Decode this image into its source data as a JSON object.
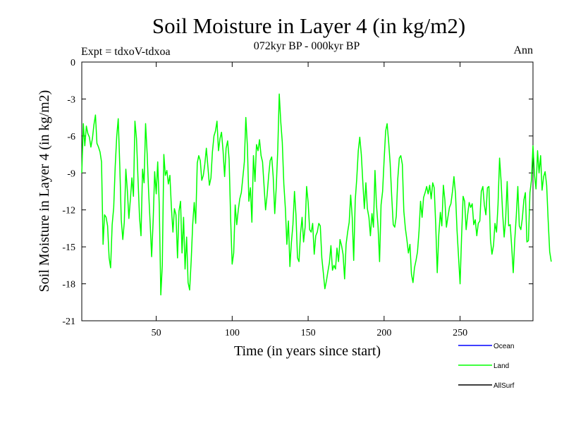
{
  "chart_data": {
    "type": "line",
    "title": "Soil Moisture in Layer 4 (in kg/m2)",
    "subtitle": "072kyr BP - 000kyr BP",
    "top_left_label": "Expt = tdxoV-tdxoa",
    "top_right_label": "Ann",
    "xlabel": "Time (in years since start)",
    "ylabel": "Soil Moisture in Layer 4 (in kg/m2)",
    "xlim": [
      1,
      298
    ],
    "ylim": [
      -21,
      0
    ],
    "x_ticks": [
      50,
      100,
      150,
      200,
      250
    ],
    "y_ticks": [
      0,
      -3,
      -6,
      -9,
      -12,
      -15,
      -18,
      -21
    ],
    "grid": false,
    "legend": {
      "placement": "bottom-right",
      "entries": [
        {
          "label": "Ocean",
          "color": "#0000ff"
        },
        {
          "label": "Land",
          "color": "#00ff00"
        },
        {
          "label": "AllSurf",
          "color": "#000000"
        }
      ]
    },
    "series": [
      {
        "name": "Land",
        "color": "#00ff00",
        "x_start": 1,
        "x_step": 1,
        "values": [
          -9.0,
          -5.0,
          -6.8,
          -5.2,
          -5.8,
          -6.1,
          -6.9,
          -6.2,
          -5.1,
          -4.3,
          -6.6,
          -6.9,
          -7.3,
          -8.1,
          -14.8,
          -12.4,
          -12.6,
          -13.3,
          -15.9,
          -16.7,
          -13.2,
          -11.8,
          -8.5,
          -6.0,
          -4.6,
          -8.4,
          -12.8,
          -14.4,
          -13.0,
          -8.7,
          -10.4,
          -12.7,
          -11.1,
          -9.4,
          -10.9,
          -4.8,
          -6.2,
          -9.4,
          -12.6,
          -14.1,
          -8.7,
          -9.8,
          -5.0,
          -7.4,
          -10.5,
          -13.1,
          -15.8,
          -12.8,
          -8.9,
          -10.7,
          -8.1,
          -11.6,
          -18.9,
          -16.5,
          -7.5,
          -9.2,
          -8.8,
          -9.9,
          -9.2,
          -11.8,
          -13.8,
          -11.9,
          -12.4,
          -15.9,
          -12.1,
          -11.3,
          -15.5,
          -12.6,
          -16.8,
          -14.2,
          -17.9,
          -18.5,
          -16.1,
          -13.2,
          -11.4,
          -13.1,
          -8.2,
          -7.6,
          -8.0,
          -9.6,
          -9.2,
          -8.3,
          -7.0,
          -8.5,
          -10.0,
          -9.4,
          -7.3,
          -6.0,
          -5.6,
          -4.8,
          -7.2,
          -6.2,
          -5.7,
          -7.2,
          -9.3,
          -7.0,
          -6.4,
          -7.9,
          -12.8,
          -16.4,
          -15.5,
          -11.6,
          -13.2,
          -12.0,
          -11.1,
          -10.6,
          -9.4,
          -8.1,
          -4.5,
          -6.8,
          -11.3,
          -10.2,
          -13.0,
          -7.6,
          -9.7,
          -6.7,
          -7.2,
          -6.3,
          -7.6,
          -8.1,
          -10.1,
          -12.0,
          -10.8,
          -9.2,
          -8.0,
          -7.7,
          -9.3,
          -12.3,
          -10.2,
          -7.1,
          -2.6,
          -4.9,
          -6.5,
          -9.9,
          -11.9,
          -14.8,
          -12.9,
          -16.6,
          -14.6,
          -13.2,
          -10.5,
          -12.4,
          -15.9,
          -16.2,
          -13.9,
          -12.6,
          -14.6,
          -13.4,
          -10.1,
          -11.4,
          -13.6,
          -13.8,
          -13.1,
          -15.6,
          -14.1,
          -13.8,
          -13.1,
          -13.3,
          -15.9,
          -17.1,
          -18.4,
          -17.8,
          -17.0,
          -16.3,
          -14.9,
          -16.9,
          -16.5,
          -16.8,
          -15.1,
          -16.2,
          -14.4,
          -14.9,
          -15.6,
          -17.6,
          -14.8,
          -13.8,
          -13.0,
          -10.8,
          -12.6,
          -16.1,
          -11.2,
          -9.5,
          -7.2,
          -6.1,
          -7.5,
          -9.8,
          -11.9,
          -9.8,
          -11.9,
          -12.6,
          -14.1,
          -12.3,
          -13.4,
          -8.8,
          -11.6,
          -13.3,
          -16.2,
          -11.6,
          -10.5,
          -8.0,
          -5.6,
          -5.0,
          -6.5,
          -8.2,
          -10.9,
          -13.2,
          -13.4,
          -12.5,
          -9.5,
          -7.8,
          -7.6,
          -8.3,
          -12.1,
          -13.5,
          -14.4,
          -15.5,
          -14.8,
          -17.2,
          -17.9,
          -16.7,
          -16.1,
          -15.4,
          -13.7,
          -11.3,
          -12.6,
          -11.0,
          -10.6,
          -10.1,
          -10.7,
          -10.0,
          -11.1,
          -9.8,
          -10.2,
          -13.3,
          -17.1,
          -14.0,
          -12.2,
          -13.3,
          -10.0,
          -11.2,
          -13.4,
          -12.6,
          -11.8,
          -11.5,
          -10.5,
          -9.3,
          -10.7,
          -13.7,
          -15.8,
          -18.0,
          -14.2,
          -10.9,
          -11.3,
          -13.6,
          -12.4,
          -11.4,
          -11.8,
          -11.5,
          -13.2,
          -12.8,
          -14.1,
          -13.1,
          -12.9,
          -10.5,
          -10.1,
          -11.6,
          -12.4,
          -10.2,
          -10.1,
          -14.4,
          -15.6,
          -14.9,
          -13.1,
          -13.8,
          -11.6,
          -7.8,
          -9.6,
          -12.2,
          -14.2,
          -12.8,
          -9.7,
          -13.3,
          -13.2,
          -15.0,
          -17.1,
          -14.5,
          -12.5,
          -10.1,
          -13.3,
          -13.6,
          -12.7,
          -11.2,
          -10.6,
          -14.6,
          -14.5,
          -10.6,
          -9.6,
          -6.8,
          -9.2,
          -10.3,
          -7.2,
          -9.0,
          -7.6,
          -10.4,
          -9.3,
          -8.9,
          -10.0,
          -12.8,
          -15.4,
          -16.2
        ]
      }
    ]
  }
}
